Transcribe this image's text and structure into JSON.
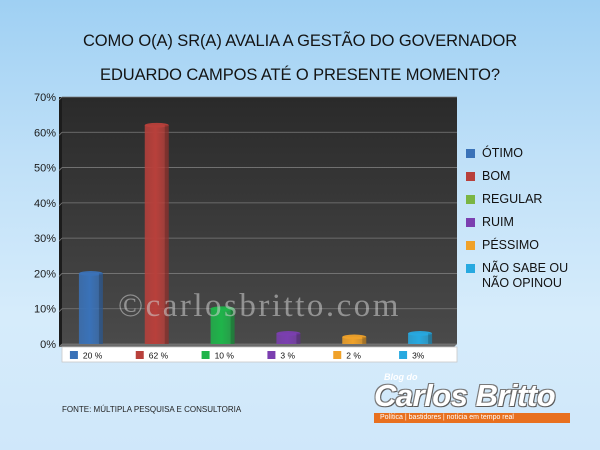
{
  "title": {
    "line1": "COMO O(A) SR(A) AVALIA A GESTÃO DO GOVERNADOR",
    "line2": "EDUARDO CAMPOS ATÉ O PRESENTE MOMENTO?"
  },
  "source": "FONTE: MÚLTIPLA PESQUISA E CONSULTORIA",
  "watermark": "©carlosbritto.com",
  "logo": {
    "blog": "Blog do",
    "name": "Carlos Britto",
    "tagline": "Política | bastidores | notícia em tempo real"
  },
  "chart_data": {
    "type": "bar",
    "title": "COMO O(A) SR(A) AVALIA A GESTÃO DO GOVERNADOR EDUARDO CAMPOS ATÉ O PRESENTE MOMENTO?",
    "categories": [
      "ÓTIMO",
      "BOM",
      "REGULAR",
      "RUIM",
      "PÉSSIMO",
      "NÃO SABE OU NÃO OPINOU"
    ],
    "values": [
      20,
      62,
      10,
      3,
      2,
      3
    ],
    "data_labels": [
      "20 %",
      "62 %",
      "10 %",
      "3 %",
      "2 %",
      "3%"
    ],
    "colors": [
      "#3a72b8",
      "#b8403b",
      "#1fb44a",
      "#7b3fb0",
      "#f0a22a",
      "#27a9e0"
    ],
    "ylim": [
      0,
      70
    ],
    "yticks": [
      0,
      10,
      20,
      30,
      40,
      50,
      60,
      70
    ],
    "ytick_labels": [
      "0%",
      "10%",
      "20%",
      "30%",
      "40%",
      "50%",
      "60%",
      "70%"
    ],
    "grid": true,
    "legend": "right",
    "legend_entries": [
      {
        "label": "ÓTIMO",
        "color": "#3a72b8"
      },
      {
        "label": "BOM",
        "color": "#b8403b"
      },
      {
        "label": "REGULAR",
        "color": "#7ab543"
      },
      {
        "label": "RUIM",
        "color": "#7b3fb0"
      },
      {
        "label": "PÉSSIMO",
        "color": "#f0a22a"
      },
      {
        "label": "NÃO SABE OU NÃO OPINOU",
        "color": "#27a9e0"
      }
    ]
  }
}
